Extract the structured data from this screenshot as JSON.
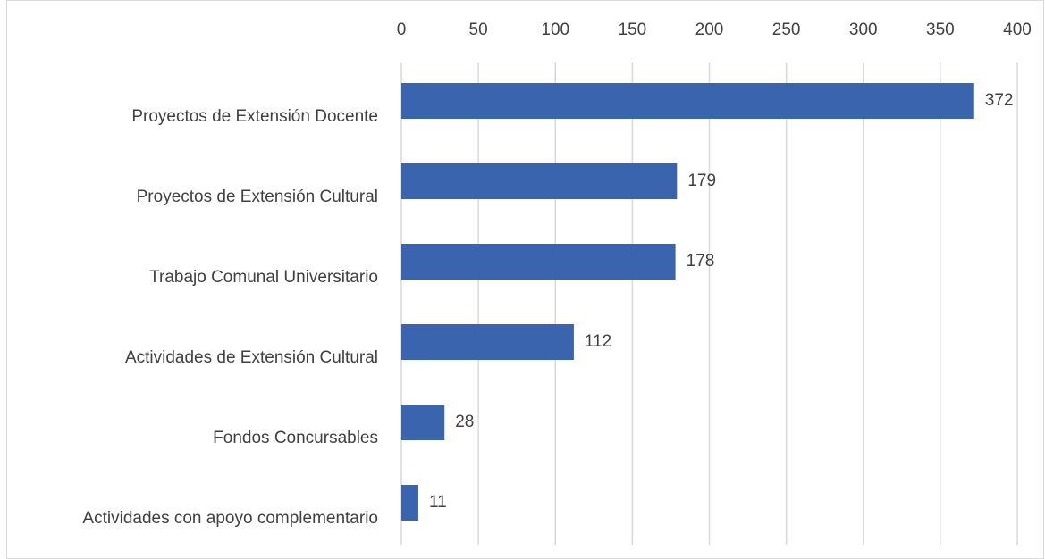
{
  "chart_data": {
    "type": "bar",
    "orientation": "horizontal",
    "categories": [
      "Proyectos de Extensión Docente",
      "Proyectos de Extensión Cultural",
      "Trabajo Comunal Universitario",
      "Actividades de Extensión Cultural",
      "Fondos Concursables",
      "Actividades con apoyo complementario"
    ],
    "values": [
      372,
      179,
      178,
      112,
      28,
      11
    ],
    "color": "#3a64ad",
    "xlim": [
      0,
      400
    ],
    "xticks": [
      0,
      50,
      100,
      150,
      200,
      250,
      300,
      350,
      400
    ],
    "grid": true,
    "axis_position": "top"
  }
}
